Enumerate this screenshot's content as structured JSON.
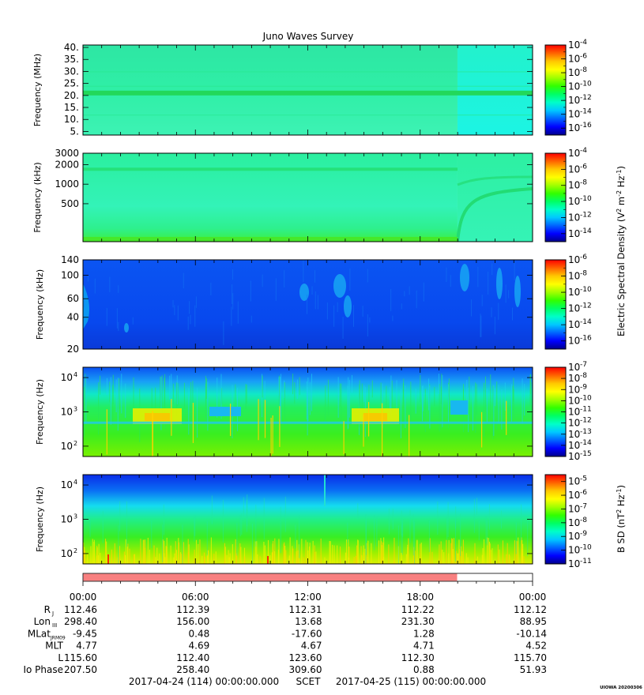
{
  "title": "Juno Waves Survey",
  "stamp": "UIOWA 20200306",
  "colors": {
    "cmap": [
      "#00008c",
      "#0000ff",
      "#0064ff",
      "#00c8ff",
      "#00ffc8",
      "#00ff64",
      "#32ff00",
      "#a0ff00",
      "#ffff00",
      "#ffc800",
      "#ff6400",
      "#ff0000"
    ],
    "bg1": "#33f0a8",
    "bg2": "#23f7c3",
    "bg3": "#0a46f0",
    "bg4": "#28e436",
    "bg5": "#1ac96e",
    "coverage_bar": "#f88080"
  },
  "chart_data": [
    {
      "type": "heatmap",
      "title": "Juno Waves Survey",
      "ylabel": "Frequency (MHz)",
      "yscale": "linear",
      "ylim": [
        3.5,
        41
      ],
      "yticks": [
        {
          "v": 5,
          "label": "5."
        },
        {
          "v": 10,
          "label": "10."
        },
        {
          "v": 15,
          "label": "15."
        },
        {
          "v": 20,
          "label": "20."
        },
        {
          "v": 25,
          "label": "25."
        },
        {
          "v": 30,
          "label": "30."
        },
        {
          "v": 35,
          "label": "35."
        },
        {
          "v": 40,
          "label": "40."
        }
      ],
      "colorbar": {
        "log_min": -17,
        "log_max": -4,
        "labels": [
          -16,
          -14,
          -12,
          -10,
          -8,
          -6,
          -4
        ]
      }
    },
    {
      "type": "heatmap",
      "ylabel": "Frequency (kHz)",
      "yscale": "log",
      "ylim": [
        130,
        3000
      ],
      "yticks": [
        {
          "v": 500,
          "label": "500"
        },
        {
          "v": 1000,
          "label": "1000"
        },
        {
          "v": 2000,
          "label": "2000"
        },
        {
          "v": 3000,
          "label": "3000"
        }
      ],
      "colorbar": {
        "log_min": -15,
        "log_max": -4,
        "labels": [
          -14,
          -12,
          -10,
          -8,
          -6,
          -4
        ]
      }
    },
    {
      "type": "heatmap",
      "ylabel": "Frequency (kHz)",
      "yscale": "log",
      "ylim": [
        20,
        140
      ],
      "yticks": [
        {
          "v": 20,
          "label": "20"
        },
        {
          "v": 40,
          "label": "40"
        },
        {
          "v": 60,
          "label": "60"
        },
        {
          "v": 100,
          "label": "100"
        },
        {
          "v": 140,
          "label": "140"
        }
      ],
      "colorbar": {
        "log_min": -17,
        "log_max": -6,
        "labels": [
          -16,
          -14,
          -12,
          -10,
          -8,
          -6
        ]
      }
    },
    {
      "type": "heatmap",
      "ylabel": "Frequency (Hz)",
      "yscale": "log",
      "ylim": [
        50,
        20000
      ],
      "yticks": [
        {
          "v": 100,
          "label": "10",
          "sup": "2"
        },
        {
          "v": 1000,
          "label": "10",
          "sup": "3"
        },
        {
          "v": 10000,
          "label": "10",
          "sup": "4"
        }
      ],
      "colorbar": {
        "log_min": -15,
        "log_max": -7,
        "labels": [
          -15,
          -14,
          -13,
          -12,
          -11,
          -10,
          -9,
          -8,
          -7
        ]
      }
    },
    {
      "type": "heatmap",
      "ylabel": "Frequency (Hz)",
      "yscale": "log",
      "ylim": [
        50,
        20000
      ],
      "yticks": [
        {
          "v": 100,
          "label": "10",
          "sup": "2"
        },
        {
          "v": 1000,
          "label": "10",
          "sup": "3"
        },
        {
          "v": 10000,
          "label": "10",
          "sup": "4"
        }
      ],
      "colorbar": {
        "log_min": -11,
        "log_max": -4.5,
        "labels": [
          -11,
          -10,
          -9,
          -8,
          -7,
          -6,
          -5
        ]
      }
    }
  ],
  "colorbar_titles": {
    "electric": "Electric Spectral Density (V",
    "electric_parts": [
      "Electric Spectral Density (V",
      "2",
      " m",
      "-2",
      " Hz",
      "-1",
      ")"
    ],
    "magnetic_parts": [
      "B SD (nT",
      "2",
      " Hz",
      "-1",
      ")"
    ]
  },
  "time_axis": {
    "tick_labels": [
      "00:00",
      "06:00",
      "12:00",
      "18:00",
      "00:00"
    ],
    "coverage_end_fraction": 0.833
  },
  "ephemeris": {
    "rows": [
      {
        "label": "R",
        "sub": "J",
        "values": [
          "112.46",
          "112.39",
          "112.31",
          "112.22",
          "112.12"
        ]
      },
      {
        "label": "Lon",
        "sub": "III",
        "values": [
          "298.40",
          "156.00",
          "13.68",
          "231.30",
          "88.95"
        ]
      },
      {
        "label": "MLat",
        "sub": "JRM09",
        "values": [
          "-9.45",
          "0.48",
          "-17.60",
          "1.28",
          "-10.14"
        ]
      },
      {
        "label": "MLT",
        "sub": "",
        "values": [
          "4.77",
          "4.69",
          "4.67",
          "4.71",
          "4.52"
        ]
      },
      {
        "label": "L",
        "sub": "",
        "values": [
          "115.60",
          "112.40",
          "123.60",
          "112.30",
          "115.70"
        ]
      },
      {
        "label": "Io Phase",
        "sub": "",
        "values": [
          "207.50",
          "258.40",
          "309.60",
          "0.88",
          "51.93"
        ]
      }
    ]
  },
  "footer": {
    "start": "2017-04-24 (114) 00:00:00.000",
    "scet": "SCET",
    "end": "2017-04-25 (115) 00:00:00.000"
  }
}
